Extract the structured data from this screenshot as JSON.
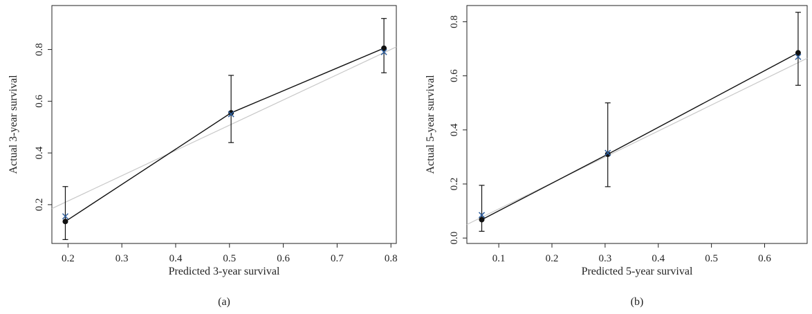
{
  "colors": {
    "observed": "#111111",
    "ideal": "#c8c8c8",
    "predicted_marker": "#2f5f9e",
    "axis": "#222222"
  },
  "chart_data": [
    {
      "type": "line",
      "panel_label": "(a)",
      "xlabel": "Predicted 3-year survival",
      "ylabel": "Actual 3-year survival",
      "xlim": [
        0.17,
        0.81
      ],
      "ylim": [
        0.05,
        0.97
      ],
      "x_ticks": [
        0.2,
        0.3,
        0.4,
        0.5,
        0.6,
        0.7,
        0.8
      ],
      "x_tick_labels": [
        "0.2",
        "0.3",
        "0.4",
        "0.5",
        "0.6",
        "0.7",
        "0.8"
      ],
      "y_ticks": [
        0.2,
        0.4,
        0.6,
        0.8
      ],
      "y_tick_labels": [
        "0.2",
        "0.4",
        "0.6",
        "0.8"
      ],
      "grid": false,
      "legend": "none",
      "observed": [
        {
          "x": 0.195,
          "y": 0.135,
          "lo": 0.065,
          "hi": 0.27
        },
        {
          "x": 0.503,
          "y": 0.555,
          "lo": 0.44,
          "hi": 0.7
        },
        {
          "x": 0.787,
          "y": 0.805,
          "lo": 0.71,
          "hi": 0.92
        }
      ],
      "predicted_markers": [
        {
          "x": 0.195,
          "y": 0.155
        },
        {
          "x": 0.503,
          "y": 0.55
        },
        {
          "x": 0.787,
          "y": 0.79
        }
      ],
      "ideal_line": [
        [
          0.17,
          0.185
        ],
        [
          0.81,
          0.81
        ]
      ]
    },
    {
      "type": "line",
      "panel_label": "(b)",
      "xlabel": "Predicted 5-year survival",
      "ylabel": "Actual 5-year survival",
      "xlim": [
        0.04,
        0.68
      ],
      "ylim": [
        -0.02,
        0.86
      ],
      "x_ticks": [
        0.1,
        0.2,
        0.3,
        0.4,
        0.5,
        0.6
      ],
      "x_tick_labels": [
        "0.1",
        "0.2",
        "0.3",
        "0.4",
        "0.5",
        "0.6"
      ],
      "y_ticks": [
        0.0,
        0.2,
        0.4,
        0.6,
        0.8
      ],
      "y_tick_labels": [
        "0.0",
        "0.2",
        "0.4",
        "0.6",
        "0.8"
      ],
      "grid": false,
      "legend": "none",
      "observed": [
        {
          "x": 0.068,
          "y": 0.068,
          "lo": 0.025,
          "hi": 0.195
        },
        {
          "x": 0.305,
          "y": 0.31,
          "lo": 0.19,
          "hi": 0.5
        },
        {
          "x": 0.663,
          "y": 0.685,
          "lo": 0.565,
          "hi": 0.835
        }
      ],
      "predicted_markers": [
        {
          "x": 0.068,
          "y": 0.085
        },
        {
          "x": 0.305,
          "y": 0.315
        },
        {
          "x": 0.663,
          "y": 0.67
        }
      ],
      "ideal_line": [
        [
          0.04,
          0.05
        ],
        [
          0.68,
          0.665
        ]
      ]
    }
  ]
}
